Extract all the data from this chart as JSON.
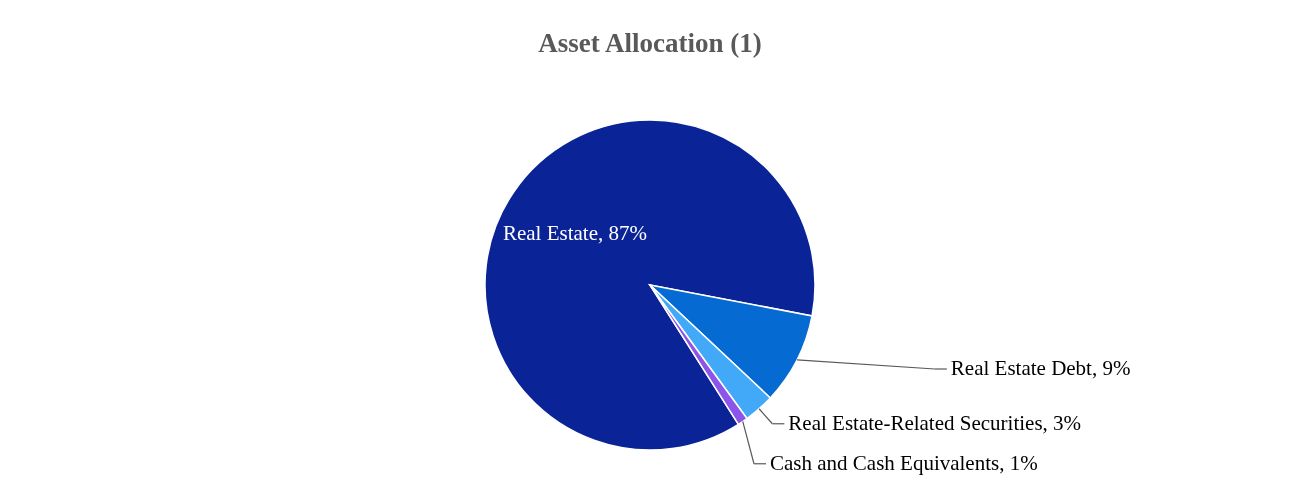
{
  "chart_data": {
    "type": "pie",
    "title": "Asset Allocation (1)",
    "categories": [
      "Real Estate",
      "Real Estate Debt",
      "Real Estate-Related Securities",
      "Cash and Cash Equivalents"
    ],
    "values": [
      87,
      9,
      3,
      1
    ],
    "value_labels": [
      "87%",
      "9%",
      "3%",
      "1%"
    ],
    "colors": [
      "#0a2396",
      "#056ad1",
      "#42a8f8",
      "#8a55e8"
    ]
  }
}
